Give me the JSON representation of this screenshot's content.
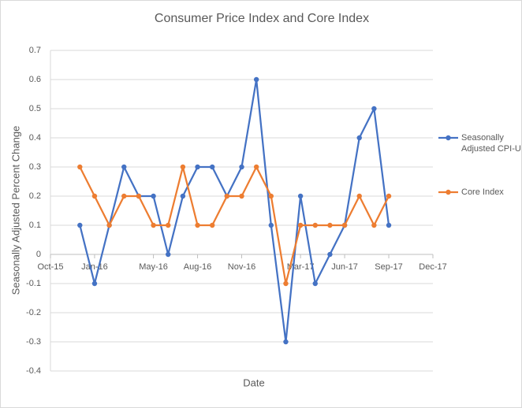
{
  "chart_data": {
    "type": "line",
    "title": "Consumer Price Index and Core Index",
    "x_label": "Date",
    "y_label": "Seasonally Adjusted Percent Change",
    "x": [
      "Dec-15",
      "Jan-16",
      "Feb-16",
      "Mar-16",
      "Apr-16",
      "May-16",
      "Jun-16",
      "Jul-16",
      "Aug-16",
      "Sep-16",
      "Oct-16",
      "Nov-16",
      "Dec-16",
      "Jan-17",
      "Feb-17",
      "Mar-17",
      "Apr-17",
      "May-17",
      "Jun-17",
      "Jul-17",
      "Aug-17",
      "Sep-17"
    ],
    "series": [
      {
        "name": "Seasonally Adjusted CPI-U",
        "color": "#4472c4",
        "values": [
          0.1,
          -0.1,
          0.1,
          0.3,
          0.2,
          0.2,
          0,
          0.2,
          0.3,
          0.3,
          0.2,
          0.3,
          0.6,
          0.1,
          -0.3,
          0.2,
          -0.1,
          0,
          0.1,
          0.4,
          0.5,
          0.1
        ]
      },
      {
        "name": "Core Index",
        "color": "#ed7d31",
        "values": [
          0.3,
          0.2,
          0.1,
          0.2,
          0.2,
          0.1,
          0.1,
          0.3,
          0.1,
          0.1,
          0.2,
          0.2,
          0.3,
          0.2,
          -0.1,
          0.1,
          0.1,
          0.1,
          0.1,
          0.2,
          0.1,
          0.2
        ]
      }
    ],
    "xlim": [
      "Oct-15",
      "Dec-17"
    ],
    "xticks": [
      "Oct-15",
      "Jan-16",
      "May-16",
      "Aug-16",
      "Nov-16",
      "Mar-17",
      "Jun-17",
      "Sep-17",
      "Dec-17"
    ],
    "ylim": [
      -0.4,
      0.7
    ],
    "yticks": [
      -0.4,
      -0.3,
      -0.2,
      -0.1,
      0,
      0.1,
      0.2,
      0.3,
      0.4,
      0.5,
      0.6,
      0.7
    ],
    "grid": true,
    "legend": "right"
  }
}
